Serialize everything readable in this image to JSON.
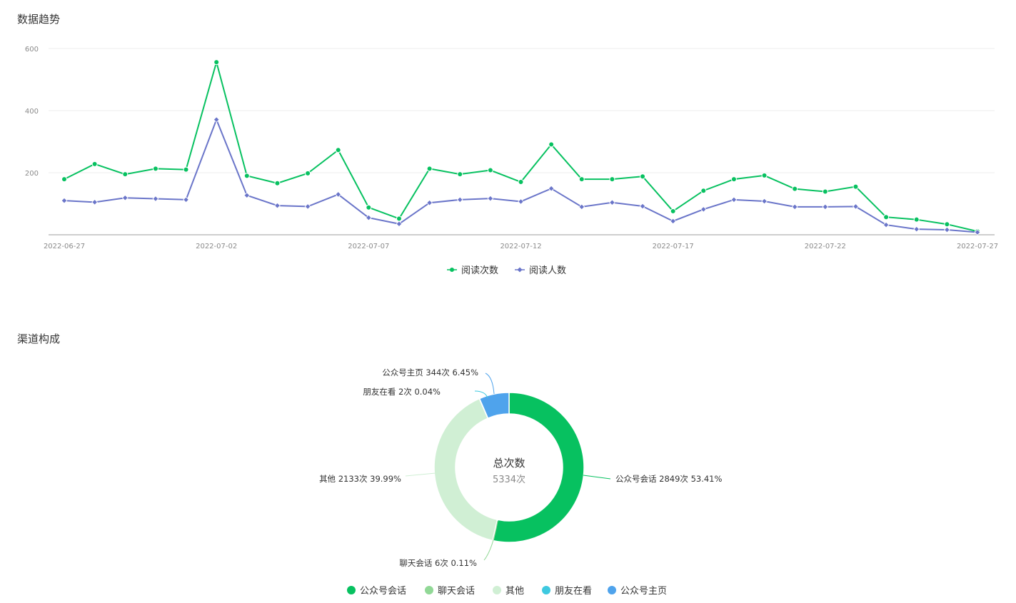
{
  "sections": {
    "trend_title": "数据趋势",
    "channel_title": "渠道构成"
  },
  "chart_data": [
    {
      "type": "line",
      "title": "数据趋势",
      "x": [
        "2022-06-27",
        "2022-06-28",
        "2022-06-29",
        "2022-06-30",
        "2022-07-01",
        "2022-07-02",
        "2022-07-03",
        "2022-07-04",
        "2022-07-05",
        "2022-07-06",
        "2022-07-07",
        "2022-07-08",
        "2022-07-09",
        "2022-07-10",
        "2022-07-11",
        "2022-07-12",
        "2022-07-13",
        "2022-07-14",
        "2022-07-15",
        "2022-07-16",
        "2022-07-17",
        "2022-07-18",
        "2022-07-19",
        "2022-07-20",
        "2022-07-21",
        "2022-07-22",
        "2022-07-23",
        "2022-07-24",
        "2022-07-25",
        "2022-07-26",
        "2022-07-27"
      ],
      "x_tick_labels": [
        "2022-06-27",
        "2022-07-02",
        "2022-07-07",
        "2022-07-12",
        "2022-07-17",
        "2022-07-22",
        "2022-07-27"
      ],
      "y_tick_labels": [
        "200",
        "400",
        "600"
      ],
      "ylim": [
        0,
        600
      ],
      "grid": true,
      "legend_position": "bottom",
      "series": [
        {
          "name": "阅读次数",
          "color": "#07c160",
          "marker": "circle",
          "values": [
            179,
            228,
            195,
            213,
            210,
            556,
            190,
            166,
            198,
            273,
            88,
            52,
            213,
            195,
            208,
            170,
            291,
            179,
            179,
            188,
            76,
            142,
            179,
            191,
            148,
            139,
            155,
            57,
            49,
            34,
            11
          ]
        },
        {
          "name": "阅读人数",
          "color": "#6a75c9",
          "marker": "diamond",
          "values": [
            110,
            105,
            119,
            116,
            113,
            371,
            127,
            94,
            91,
            130,
            55,
            35,
            103,
            113,
            117,
            107,
            149,
            90,
            104,
            92,
            44,
            82,
            113,
            108,
            90,
            90,
            91,
            32,
            18,
            16,
            8
          ]
        }
      ]
    },
    {
      "type": "pie",
      "title": "渠道构成",
      "center_title": "总次数",
      "center_value": "5334次",
      "legend_position": "bottom",
      "slices": [
        {
          "name": "公众号会话",
          "value": 2849,
          "percent": "53.41%",
          "label": "公众号会话 2849次 53.41%",
          "color": "#07c160"
        },
        {
          "name": "聊天会话",
          "value": 6,
          "percent": "0.11%",
          "label": "聊天会话 6次 0.11%",
          "color": "#91d896"
        },
        {
          "name": "其他",
          "value": 2133,
          "percent": "39.99%",
          "label": "其他 2133次 39.99%",
          "color": "#d0efd4"
        },
        {
          "name": "朋友在看",
          "value": 2,
          "percent": "0.04%",
          "label": "朋友在看 2次 0.04%",
          "color": "#3ec9e0"
        },
        {
          "name": "公众号主页",
          "value": 344,
          "percent": "6.45%",
          "label": "公众号主页 344次 6.45%",
          "color": "#4fa3ec"
        }
      ]
    }
  ]
}
